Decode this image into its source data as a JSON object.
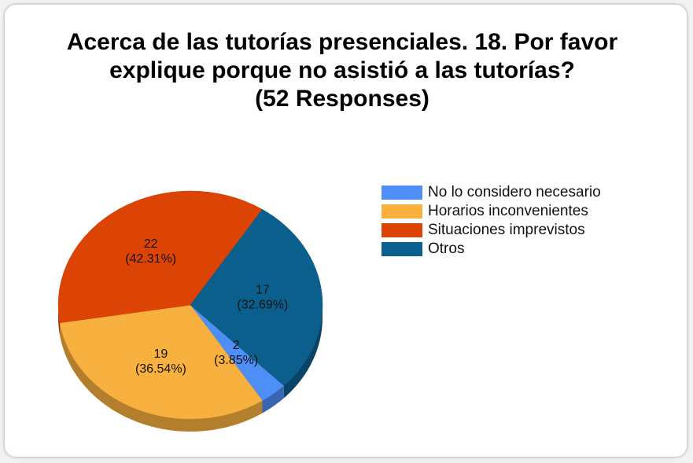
{
  "chart_data": {
    "type": "pie3d",
    "title": "Acerca de las tutorías presenciales.  18. Por favor explique porque no asistió a las tutorías?",
    "subtitle": "(52  Responses)",
    "categories": [
      "No lo considero necesario",
      "Horarios inconvenientes",
      "Situaciones imprevistos",
      "Otros"
    ],
    "values": [
      2,
      19,
      22,
      17
    ],
    "value_labels": [
      [
        "2",
        "(3.85%)"
      ],
      [
        "19",
        "(36.54%)"
      ],
      [
        "22",
        "(42.31%)"
      ],
      [
        "17",
        "(32.69%)"
      ]
    ],
    "colors": [
      "#4e8ef7",
      "#f8b03f",
      "#dc4405",
      "#0b5f8c"
    ],
    "legend": "right"
  }
}
